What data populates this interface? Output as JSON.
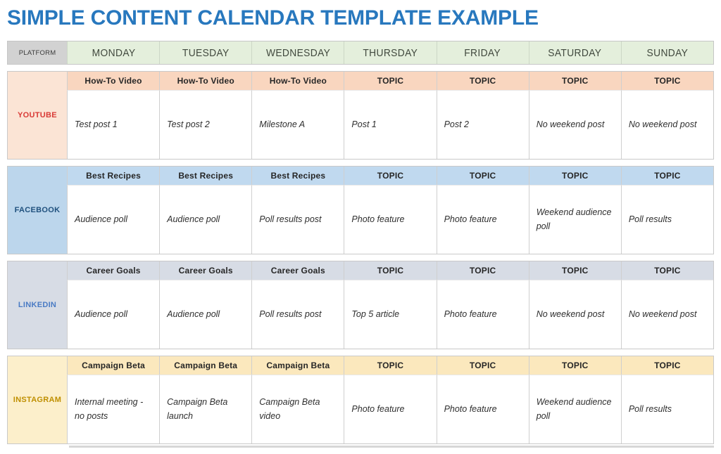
{
  "title": "SIMPLE CONTENT CALENDAR TEMPLATE EXAMPLE",
  "header": {
    "platform_label": "PLATFORM",
    "days": [
      "MONDAY",
      "TUESDAY",
      "WEDNESDAY",
      "THURSDAY",
      "FRIDAY",
      "SATURDAY",
      "SUNDAY"
    ]
  },
  "colors": {
    "title": "#2878be",
    "platform_header_bg": "#d2d2d2",
    "day_header_bg": "#e4efdc",
    "youtube_accent": "#d93a36",
    "youtube_bg": "#fbe4d5",
    "youtube_topic_bg": "#f9d6bf",
    "facebook_accent": "#20517e",
    "facebook_bg": "#bcd6ec",
    "facebook_topic_bg": "#c0d9ef",
    "linkedin_accent": "#4a7bc4",
    "linkedin_bg": "#d7dce5",
    "linkedin_topic_bg": "#d7dce5",
    "instagram_accent": "#bf8f00",
    "instagram_bg": "#fcefcb",
    "instagram_topic_bg": "#fbe8bd"
  },
  "platforms": [
    {
      "name": "YOUTUBE",
      "topics": [
        "How-To Video",
        "How-To Video",
        "How-To Video",
        "TOPIC",
        "TOPIC",
        "TOPIC",
        "TOPIC"
      ],
      "posts": [
        "Test post 1",
        "Test post 2",
        "Milestone A",
        "Post 1",
        "Post 2",
        "No weekend post",
        "No weekend post"
      ]
    },
    {
      "name": "FACEBOOK",
      "topics": [
        "Best Recipes",
        "Best Recipes",
        "Best Recipes",
        "TOPIC",
        "TOPIC",
        "TOPIC",
        "TOPIC"
      ],
      "posts": [
        "Audience poll",
        "Audience poll",
        "Poll results post",
        "Photo feature",
        "Photo feature",
        "Weekend audience poll",
        "Poll results"
      ]
    },
    {
      "name": "LINKEDIN",
      "topics": [
        "Career Goals",
        "Career Goals",
        "Career Goals",
        "TOPIC",
        "TOPIC",
        "TOPIC",
        "TOPIC"
      ],
      "posts": [
        "Audience poll",
        "Audience poll",
        "Poll results post",
        "Top 5 article",
        "Photo feature",
        "No weekend post",
        "No weekend post"
      ]
    },
    {
      "name": "INSTAGRAM",
      "topics": [
        "Campaign Beta",
        "Campaign Beta",
        "Campaign Beta",
        "TOPIC",
        "TOPIC",
        "TOPIC",
        "TOPIC"
      ],
      "posts": [
        "Internal meeting - no posts",
        "Campaign Beta launch",
        "Campaign Beta video",
        "Photo feature",
        "Photo feature",
        "Weekend audience poll",
        "Poll results"
      ]
    }
  ]
}
